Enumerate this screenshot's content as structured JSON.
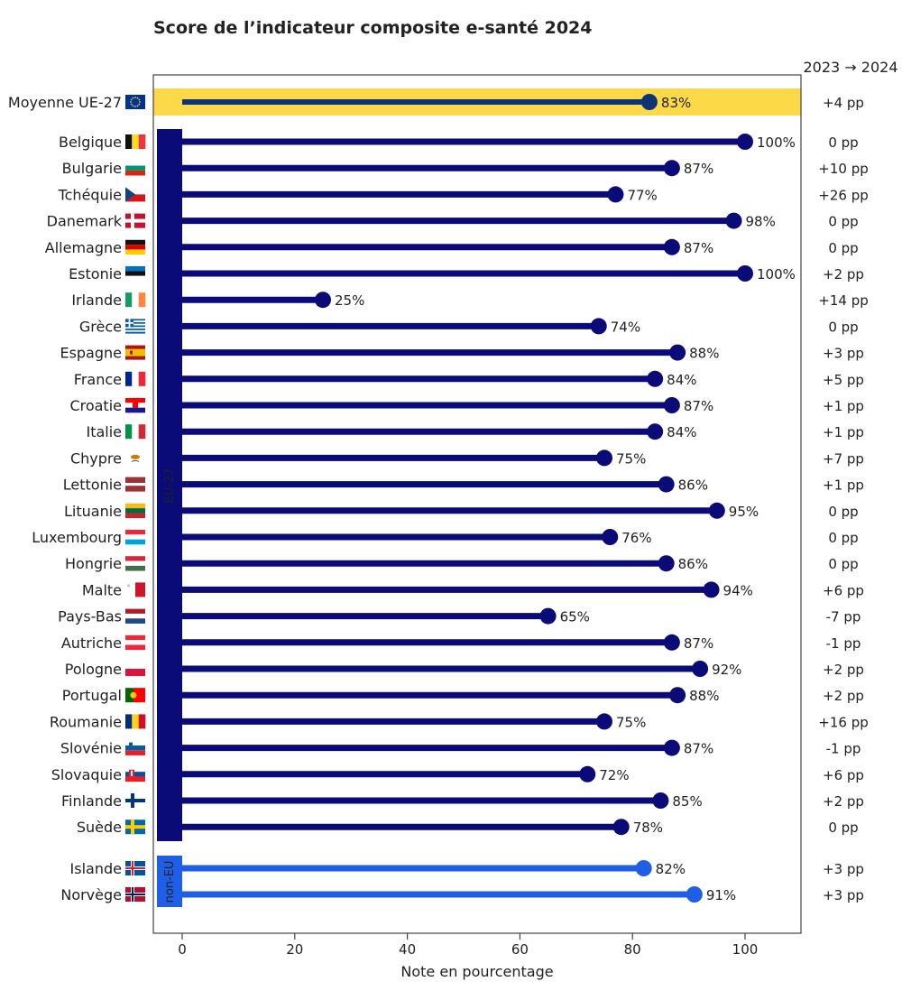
{
  "chart_data": {
    "type": "lollipop",
    "title": "Score de l’indicateur composite e-santé 2024",
    "xlabel": "Note en pourcentage",
    "xlim": [
      -5,
      110
    ],
    "xticks": [
      0,
      20,
      40,
      60,
      80,
      100
    ],
    "change_header": "2023 → 2024",
    "group_labels": {
      "eu": "EU-27",
      "noneu": "non-EU"
    },
    "colors": {
      "eu": "#0a0a78",
      "noneu": "#1f5fe8",
      "average": "#0d3573",
      "highlight": "#fcd949",
      "positive": "#2a9a2a",
      "negative": "#e02020",
      "neutral": "#222222"
    },
    "average": {
      "label": "Moyenne UE-27",
      "value": 83,
      "value_label": "83%",
      "change": "+4 pp",
      "flag": "eu"
    },
    "eu_countries": [
      {
        "label": "Belgique",
        "value": 100,
        "value_label": "100%",
        "change": "0 pp",
        "flag": "be"
      },
      {
        "label": "Bulgarie",
        "value": 87,
        "value_label": "87%",
        "change": "+10 pp",
        "flag": "bg"
      },
      {
        "label": "Tchéquie",
        "value": 77,
        "value_label": "77%",
        "change": "+26 pp",
        "flag": "cz"
      },
      {
        "label": "Danemark",
        "value": 98,
        "value_label": "98%",
        "change": "0 pp",
        "flag": "dk"
      },
      {
        "label": "Allemagne",
        "value": 87,
        "value_label": "87%",
        "change": "0 pp",
        "flag": "de"
      },
      {
        "label": "Estonie",
        "value": 100,
        "value_label": "100%",
        "change": "+2 pp",
        "flag": "ee"
      },
      {
        "label": "Irlande",
        "value": 25,
        "value_label": "25%",
        "change": "+14 pp",
        "flag": "ie"
      },
      {
        "label": "Grèce",
        "value": 74,
        "value_label": "74%",
        "change": "0 pp",
        "flag": "gr"
      },
      {
        "label": "Espagne",
        "value": 88,
        "value_label": "88%",
        "change": "+3 pp",
        "flag": "es"
      },
      {
        "label": "France",
        "value": 84,
        "value_label": "84%",
        "change": "+5 pp",
        "flag": "fr"
      },
      {
        "label": "Croatie",
        "value": 87,
        "value_label": "87%",
        "change": "+1 pp",
        "flag": "hr"
      },
      {
        "label": "Italie",
        "value": 84,
        "value_label": "84%",
        "change": "+1 pp",
        "flag": "it"
      },
      {
        "label": "Chypre",
        "value": 75,
        "value_label": "75%",
        "change": "+7 pp",
        "flag": "cy"
      },
      {
        "label": "Lettonie",
        "value": 86,
        "value_label": "86%",
        "change": "+1 pp",
        "flag": "lv"
      },
      {
        "label": "Lituanie",
        "value": 95,
        "value_label": "95%",
        "change": "0 pp",
        "flag": "lt"
      },
      {
        "label": "Luxembourg",
        "value": 76,
        "value_label": "76%",
        "change": "0 pp",
        "flag": "lu"
      },
      {
        "label": "Hongrie",
        "value": 86,
        "value_label": "86%",
        "change": "0 pp",
        "flag": "hu"
      },
      {
        "label": "Malte",
        "value": 94,
        "value_label": "94%",
        "change": "+6 pp",
        "flag": "mt"
      },
      {
        "label": "Pays-Bas",
        "value": 65,
        "value_label": "65%",
        "change": "-7 pp",
        "flag": "nl"
      },
      {
        "label": "Autriche",
        "value": 87,
        "value_label": "87%",
        "change": "-1 pp",
        "flag": "at"
      },
      {
        "label": "Pologne",
        "value": 92,
        "value_label": "92%",
        "change": "+2 pp",
        "flag": "pl"
      },
      {
        "label": "Portugal",
        "value": 88,
        "value_label": "88%",
        "change": "+2 pp",
        "flag": "pt"
      },
      {
        "label": "Roumanie",
        "value": 75,
        "value_label": "75%",
        "change": "+16 pp",
        "flag": "ro"
      },
      {
        "label": "Slovénie",
        "value": 87,
        "value_label": "87%",
        "change": "-1 pp",
        "flag": "si"
      },
      {
        "label": "Slovaquie",
        "value": 72,
        "value_label": "72%",
        "change": "+6 pp",
        "flag": "sk"
      },
      {
        "label": "Finlande",
        "value": 85,
        "value_label": "85%",
        "change": "+2 pp",
        "flag": "fi"
      },
      {
        "label": "Suède",
        "value": 78,
        "value_label": "78%",
        "change": "0 pp",
        "flag": "se"
      }
    ],
    "non_eu_countries": [
      {
        "label": "Islande",
        "value": 82,
        "value_label": "82%",
        "change": "+3 pp",
        "flag": "is"
      },
      {
        "label": "Norvège",
        "value": 91,
        "value_label": "91%",
        "change": "+3 pp",
        "flag": "no"
      }
    ]
  }
}
